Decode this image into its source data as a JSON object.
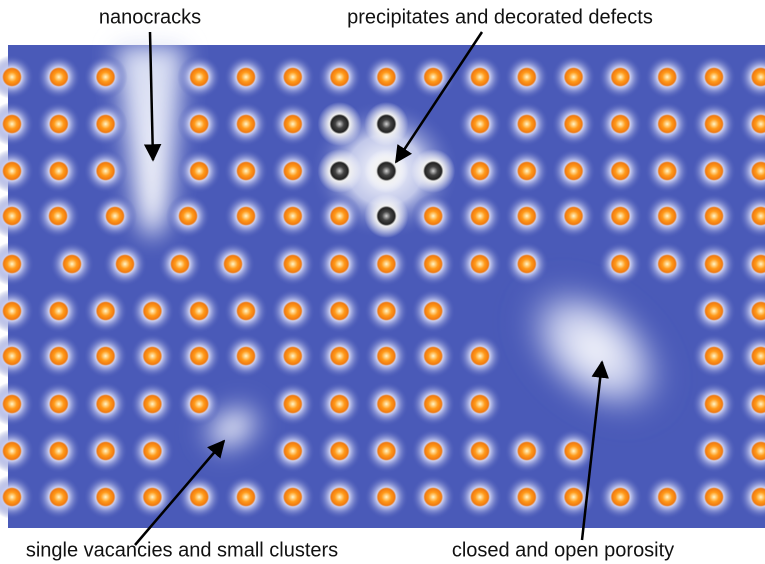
{
  "labels": [
    "nanocracks",
    "precipitates and decorated defects",
    "single vacancies and small clusters",
    "closed and open porosity"
  ]
}
